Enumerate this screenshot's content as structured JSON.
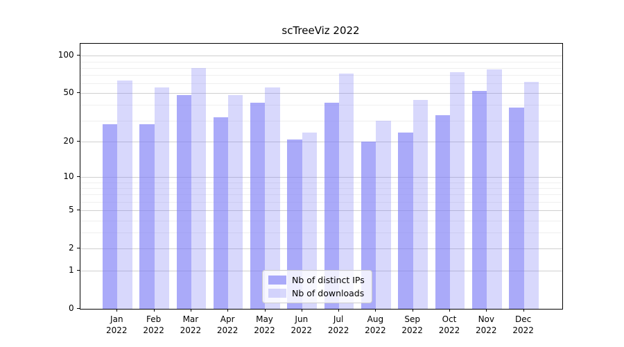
{
  "title": "scTreeViz 2022",
  "chart_data": {
    "type": "bar",
    "title": "scTreeViz 2022",
    "categories": [
      "Jan 2022",
      "Feb 2022",
      "Mar 2022",
      "Apr 2022",
      "May 2022",
      "Jun 2022",
      "Jul 2022",
      "Aug 2022",
      "Sep 2022",
      "Oct 2022",
      "Nov 2022",
      "Dec 2022"
    ],
    "series": [
      {
        "name": "Nb of distinct IPs",
        "color": "#7d7df6",
        "alpha": 0.65,
        "values": [
          28,
          28,
          48,
          32,
          42,
          21,
          42,
          20,
          24,
          33,
          52,
          38
        ]
      },
      {
        "name": "Nb of downloads",
        "color": "#7d7df6",
        "alpha": 0.3,
        "values": [
          63,
          56,
          80,
          48,
          56,
          24,
          72,
          30,
          44,
          74,
          78,
          62
        ]
      }
    ],
    "xlabel": "",
    "ylabel": "",
    "yscale": "log1p",
    "yticks": [
      0,
      1,
      2,
      5,
      10,
      20,
      50,
      100
    ],
    "minor_yticks": [
      3,
      4,
      6,
      7,
      8,
      9,
      30,
      40,
      60,
      70,
      80,
      90
    ],
    "ylim": [
      0,
      125
    ],
    "grid": true,
    "legend_position": "lower center"
  },
  "legend": {
    "items": [
      {
        "label": "Nb of distinct IPs"
      },
      {
        "label": "Nb of downloads"
      }
    ]
  }
}
